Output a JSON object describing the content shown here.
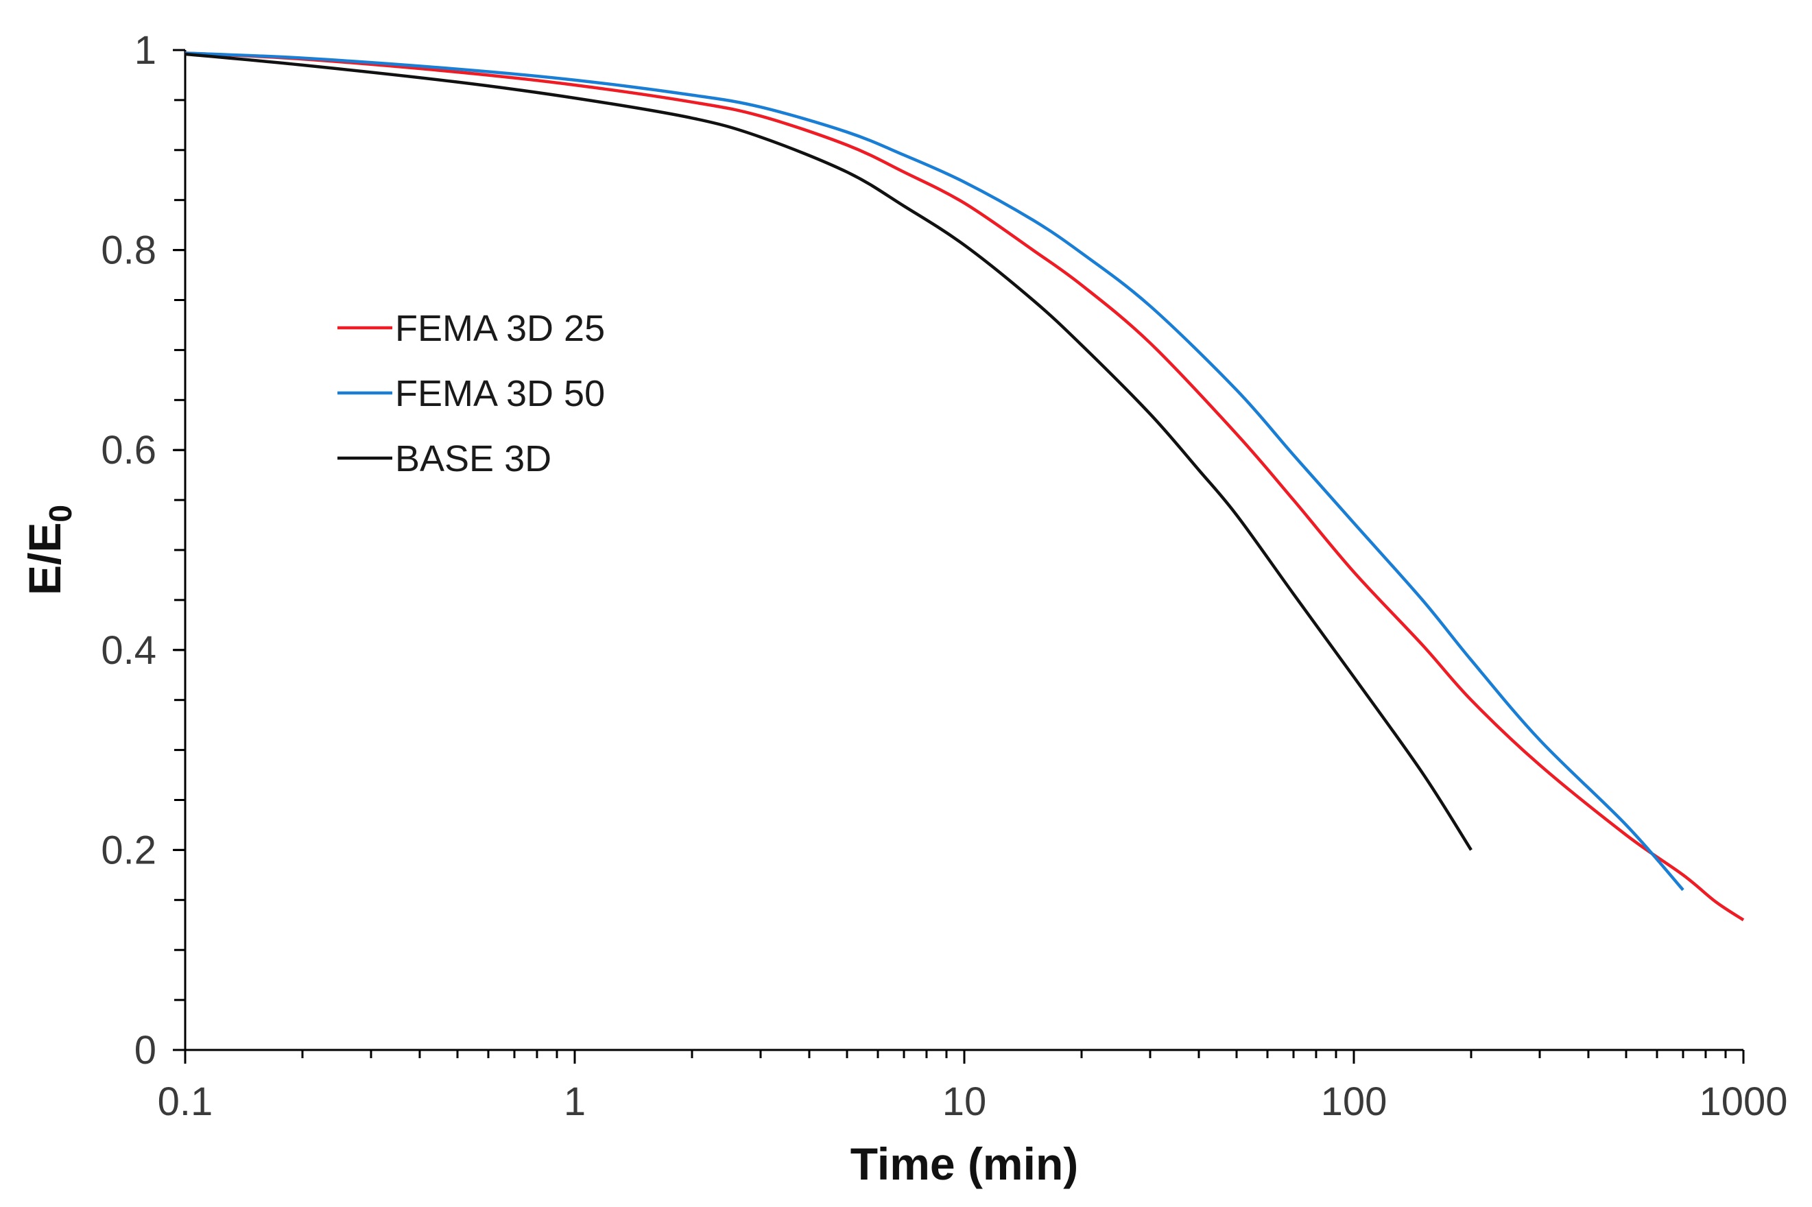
{
  "chart_data": {
    "type": "line",
    "title": "",
    "xlabel": "Time (min)",
    "ylabel_main": "E/E",
    "ylabel_sub": "0",
    "xscale": "log",
    "xlim": [
      0.1,
      1000
    ],
    "ylim": [
      0,
      1
    ],
    "x_ticks": [
      {
        "value": 0.1,
        "label": "0.1"
      },
      {
        "value": 1,
        "label": "1"
      },
      {
        "value": 10,
        "label": "10"
      },
      {
        "value": 100,
        "label": "100"
      },
      {
        "value": 1000,
        "label": "1000"
      }
    ],
    "y_ticks": [
      {
        "value": 0,
        "label": "0"
      },
      {
        "value": 0.2,
        "label": "0.2"
      },
      {
        "value": 0.4,
        "label": "0.4"
      },
      {
        "value": 0.6,
        "label": "0.6"
      },
      {
        "value": 0.8,
        "label": "0.8"
      },
      {
        "value": 1,
        "label": "1"
      }
    ],
    "y_minor_step": 0.05,
    "grid": false,
    "legend_position": "left-upper",
    "series": [
      {
        "name": "FEMA 3D 25",
        "color": "#ee1c25",
        "x": [
          0.1,
          0.2,
          0.5,
          1,
          2,
          3,
          5,
          7,
          10,
          15,
          20,
          30,
          50,
          70,
          100,
          150,
          200,
          300,
          500,
          700,
          850,
          1000
        ],
        "y": [
          0.997,
          0.991,
          0.978,
          0.965,
          0.948,
          0.934,
          0.905,
          0.878,
          0.847,
          0.8,
          0.765,
          0.707,
          0.616,
          0.55,
          0.478,
          0.405,
          0.35,
          0.285,
          0.215,
          0.175,
          0.148,
          0.13
        ]
      },
      {
        "name": "FEMA 3D 50",
        "color": "#1a7fd4",
        "x": [
          0.1,
          0.2,
          0.5,
          1,
          2,
          3,
          5,
          7,
          10,
          15,
          20,
          30,
          50,
          70,
          100,
          150,
          200,
          300,
          500,
          700
        ],
        "y": [
          0.997,
          0.992,
          0.981,
          0.97,
          0.955,
          0.943,
          0.918,
          0.895,
          0.868,
          0.83,
          0.797,
          0.744,
          0.66,
          0.595,
          0.527,
          0.45,
          0.39,
          0.31,
          0.225,
          0.16
        ]
      },
      {
        "name": "BASE 3D",
        "color": "#111111",
        "x": [
          0.1,
          0.2,
          0.5,
          1,
          2,
          3,
          5,
          7,
          10,
          15,
          20,
          30,
          40,
          50,
          70,
          100,
          150,
          200
        ],
        "y": [
          0.996,
          0.985,
          0.968,
          0.952,
          0.932,
          0.913,
          0.878,
          0.844,
          0.805,
          0.75,
          0.705,
          0.636,
          0.58,
          0.535,
          0.456,
          0.373,
          0.277,
          0.2
        ]
      }
    ]
  }
}
